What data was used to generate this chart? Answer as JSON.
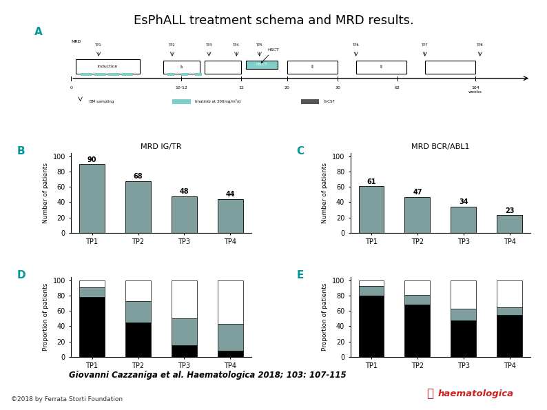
{
  "title": "EsPhALL treatment schema and MRD results.",
  "title_fontsize": 13,
  "bg_color": "#ffffff",
  "panel_B_title": "MRD IG/TR",
  "panel_C_title": "MRD BCR/ABL1",
  "panel_D_label": "D",
  "panel_E_label": "E",
  "bar_color": "#7f9f9f",
  "tps": [
    "TP1",
    "TP2",
    "TP3",
    "TP4"
  ],
  "B_values": [
    90,
    68,
    48,
    44
  ],
  "C_values": [
    61,
    47,
    34,
    23
  ],
  "D_black": [
    78,
    45,
    15,
    8
  ],
  "D_gray": [
    13,
    28,
    35,
    35
  ],
  "D_white": [
    9,
    27,
    50,
    57
  ],
  "E_black": [
    80,
    68,
    48,
    55
  ],
  "E_gray": [
    13,
    13,
    15,
    10
  ],
  "E_white": [
    7,
    19,
    37,
    35
  ],
  "ylabel_B": "Number of patients",
  "ylabel_C": "Number of patients",
  "ylabel_D": "Proportion of patients",
  "ylabel_E": "Proportion of patients",
  "citation": "Giovanni Cazzaniga et al. Haematologica 2018; 103: 107-115",
  "copyright": "©2018 by Ferrata Storti Foundation",
  "panel_labels": [
    "A",
    "B",
    "C",
    "D",
    "E"
  ],
  "schema_color_teal": "#7ececa",
  "schema_color_dark": "#555555",
  "haematologica_red": "#cc0000",
  "haematologica_text": "haematologica"
}
